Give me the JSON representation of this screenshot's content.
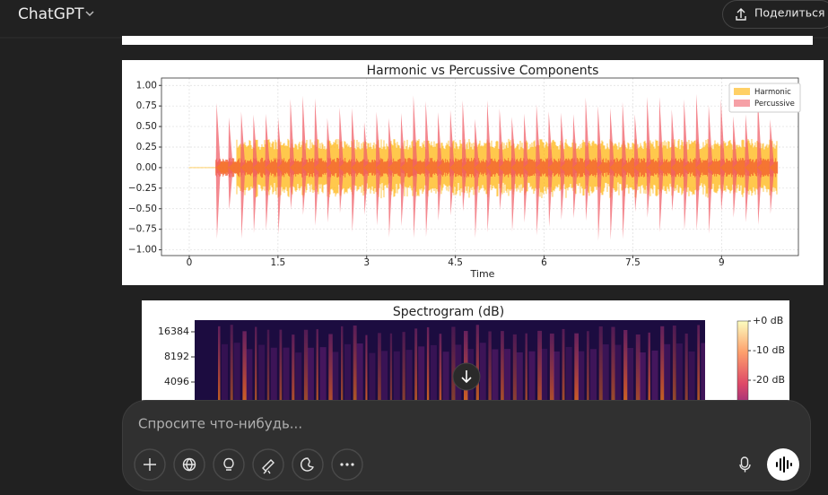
{
  "header": {
    "title": "ChatGPT",
    "share": "Поделиться"
  },
  "waveform_chart": {
    "type": "area",
    "title": "Harmonic vs Percussive Components",
    "x_label": "Time",
    "xlim": [
      -0.47,
      10.3
    ],
    "ylim": [
      -1.07,
      1.09
    ],
    "xticks": [
      0,
      1.5,
      3,
      4.5,
      6,
      7.5,
      9
    ],
    "yticks": [
      {
        "value": 1,
        "label": "1.00"
      },
      {
        "value": 0.75,
        "label": "0.75"
      },
      {
        "value": 0.5,
        "label": "0.50"
      },
      {
        "value": 0.25,
        "label": "0.25"
      },
      {
        "value": 0,
        "label": "0.00"
      },
      {
        "value": -0.25,
        "label": "−0.25"
      },
      {
        "value": -0.5,
        "label": "−0.50"
      },
      {
        "value": -0.75,
        "label": "−0.75"
      },
      {
        "value": -1,
        "label": "−1.00"
      }
    ],
    "grid": true,
    "series": [
      {
        "name": "Harmonic",
        "color": "#ffb000"
      },
      {
        "name": "Percussive",
        "color": "#f0606a"
      }
    ],
    "legend": "upper right"
  },
  "spectrogram": {
    "type": "heatmap",
    "title": "Spectrogram (dB)",
    "log_y": true,
    "yticks": [
      16384,
      8192,
      4096
    ],
    "colorbar_ticks": [
      {
        "value": 0,
        "label": "+0 dB"
      },
      {
        "value": -10,
        "label": "-10 dB"
      },
      {
        "value": -20,
        "label": "-20 dB"
      }
    ]
  },
  "composer": {
    "placeholder": "Спросите что-нибудь..."
  }
}
